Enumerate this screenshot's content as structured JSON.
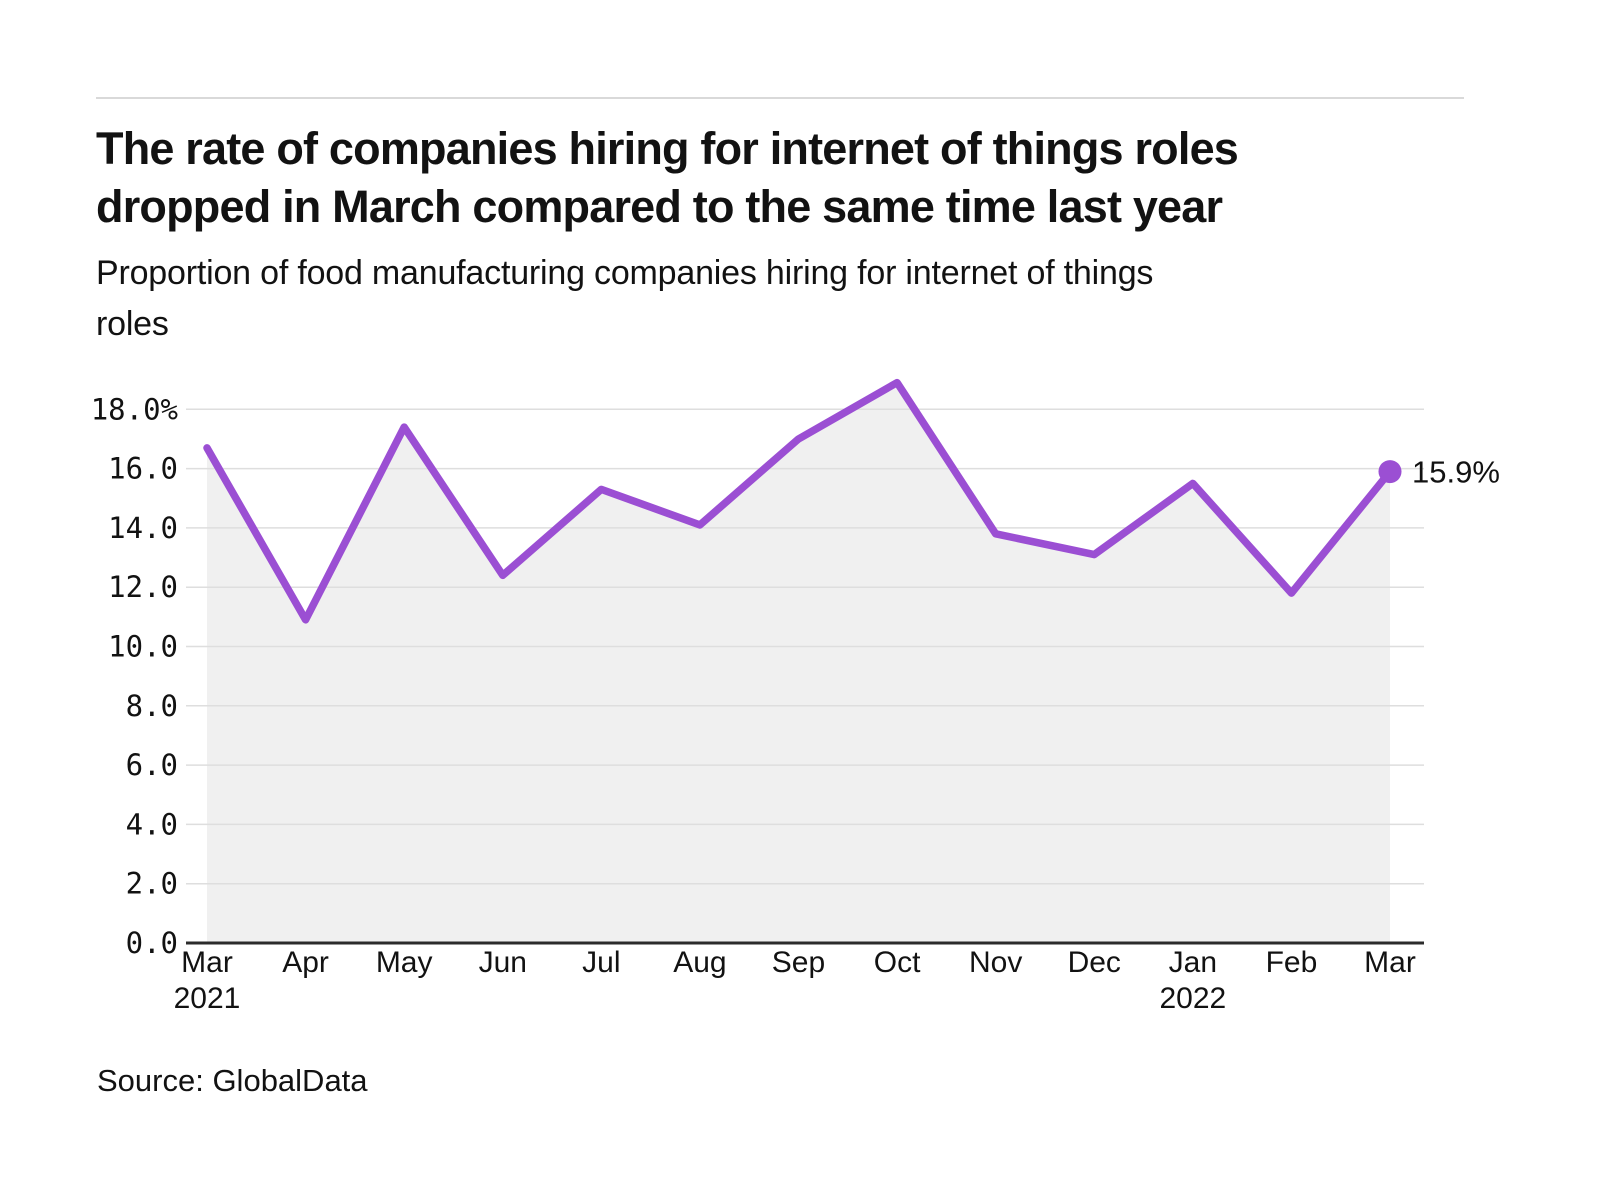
{
  "header": {
    "title_lines": [
      "The rate of companies hiring for internet of things roles",
      "dropped in March compared to the same time last year"
    ],
    "subtitle_lines": [
      "Proportion of food manufacturing companies hiring for internet of things",
      "roles"
    ]
  },
  "footer": {
    "source": "Source: GlobalData"
  },
  "chart_data": {
    "type": "line",
    "title": "The rate of companies hiring for internet of things roles dropped in March compared to the same time last year",
    "subtitle": "Proportion of food manufacturing companies hiring for internet of things roles",
    "categories": [
      {
        "month": "Mar",
        "year": "2021"
      },
      {
        "month": "Apr"
      },
      {
        "month": "May"
      },
      {
        "month": "Jun"
      },
      {
        "month": "Jul"
      },
      {
        "month": "Aug"
      },
      {
        "month": "Sep"
      },
      {
        "month": "Oct"
      },
      {
        "month": "Nov"
      },
      {
        "month": "Dec"
      },
      {
        "month": "Jan",
        "year": "2022"
      },
      {
        "month": "Feb"
      },
      {
        "month": "Mar"
      }
    ],
    "series": [
      {
        "name": "Proportion of food manufacturing companies hiring for internet of things roles",
        "values": [
          16.7,
          10.9,
          17.4,
          12.4,
          15.3,
          14.1,
          17.0,
          18.9,
          13.8,
          13.1,
          15.5,
          11.8,
          15.9
        ]
      }
    ],
    "end_point_label": "15.9%",
    "yticks": [
      {
        "value": 18,
        "label": "18.0%"
      },
      {
        "value": 16,
        "label": "16.0"
      },
      {
        "value": 14,
        "label": "14.0"
      },
      {
        "value": 12,
        "label": "12.0"
      },
      {
        "value": 10,
        "label": "10.0"
      },
      {
        "value": 8,
        "label": "8.0"
      },
      {
        "value": 6,
        "label": "6.0"
      },
      {
        "value": 4,
        "label": "4.0"
      },
      {
        "value": 2,
        "label": "2.0"
      },
      {
        "value": 0,
        "label": "0.0"
      }
    ],
    "ylim": [
      0,
      19.2
    ],
    "grid": true,
    "legend": "none",
    "source": "Source: GlobalData",
    "colors": {
      "line": "#9B4FD3",
      "area": "#f0f0f0",
      "grid": "#dedede",
      "axis": "#2b2b2b",
      "text": "#121212"
    }
  }
}
